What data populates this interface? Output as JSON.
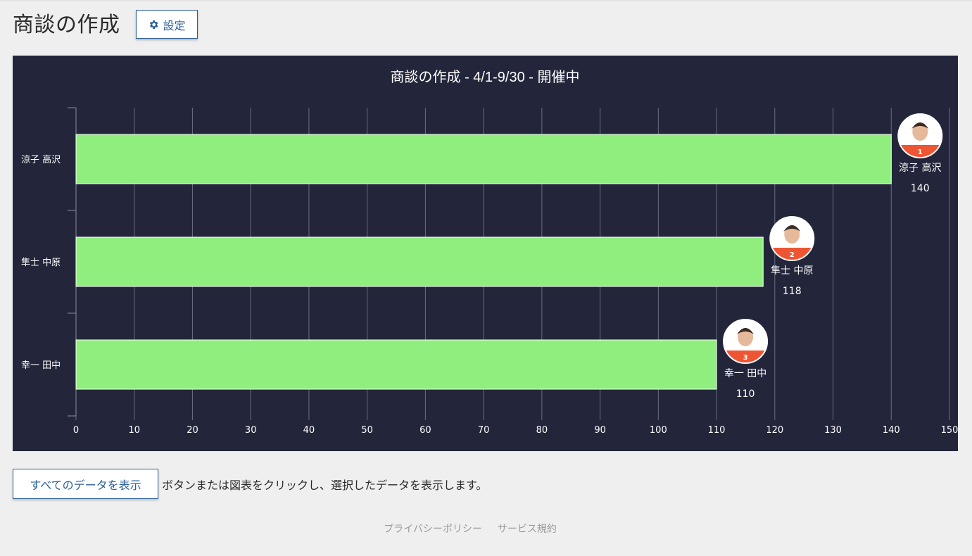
{
  "header": {
    "title": "商談の作成",
    "settings_label": "設定",
    "settings_icon": "gear-icon"
  },
  "chart_data": {
    "type": "bar",
    "orientation": "horizontal",
    "title": "商談の作成 - 4/1-9/30 - 開催中",
    "categories": [
      "涼子 高沢",
      "隼士 中原",
      "幸一 田中"
    ],
    "values": [
      140,
      118,
      110
    ],
    "ranks": [
      "1",
      "2",
      "3"
    ],
    "xlim": [
      0,
      150
    ],
    "ticks": [
      0,
      10,
      20,
      30,
      40,
      50,
      60,
      70,
      80,
      90,
      100,
      110,
      120,
      130,
      140,
      150
    ],
    "grid": true,
    "bar_color": "#90ee7e",
    "background": "#23263b",
    "rank_badge_color": "#ee5533"
  },
  "actions": {
    "show_all_label": "すべてのデータを表示",
    "hint": "ボタンまたは図表をクリックし、選択したデータを表示します。"
  },
  "footer": {
    "privacy": "プライバシーポリシー",
    "terms": "サービス規約"
  }
}
